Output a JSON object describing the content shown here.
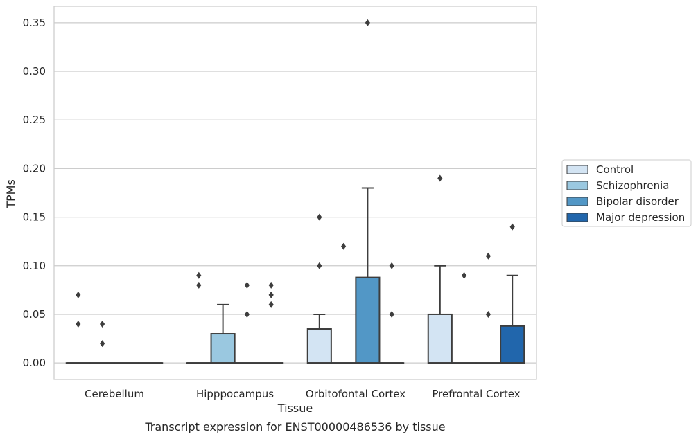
{
  "chart_data": {
    "type": "box",
    "title": "",
    "caption": "Transcript expression for ENST00000486536 by tissue",
    "xlabel": "Tissue",
    "ylabel": "TPMs",
    "ylim": [
      -0.017,
      0.367
    ],
    "yticks": [
      0.0,
      0.05,
      0.1,
      0.15,
      0.2,
      0.25,
      0.3,
      0.35
    ],
    "ytick_labels": [
      "0.00",
      "0.05",
      "0.10",
      "0.15",
      "0.20",
      "0.25",
      "0.30",
      "0.35"
    ],
    "grid": "horizontal",
    "legend_position": "right",
    "categories": [
      "Cerebellum",
      "Hipppocampus",
      "Orbitofontal Cortex",
      "Prefrontal Cortex"
    ],
    "series": [
      {
        "name": "Control",
        "color": "#d3e4f3",
        "boxes": [
          {
            "q1": 0,
            "median": 0,
            "q3": 0,
            "whisker_low": 0,
            "whisker_high": 0,
            "outliers": [
              0.07,
              0.04
            ]
          },
          {
            "q1": 0,
            "median": 0,
            "q3": 0,
            "whisker_low": 0,
            "whisker_high": 0,
            "outliers": [
              0.09,
              0.08
            ]
          },
          {
            "q1": 0,
            "median": 0,
            "q3": 0.035,
            "whisker_low": 0,
            "whisker_high": 0.05,
            "outliers": [
              0.15,
              0.1
            ]
          },
          {
            "q1": 0,
            "median": 0,
            "q3": 0.05,
            "whisker_low": 0,
            "whisker_high": 0.1,
            "outliers": [
              0.19
            ]
          }
        ]
      },
      {
        "name": "Schizophrenia",
        "color": "#9ac8e0",
        "boxes": [
          {
            "q1": 0,
            "median": 0,
            "q3": 0,
            "whisker_low": 0,
            "whisker_high": 0,
            "outliers": [
              0.04,
              0.02
            ]
          },
          {
            "q1": 0,
            "median": 0,
            "q3": 0.03,
            "whisker_low": 0,
            "whisker_high": 0.06,
            "outliers": []
          },
          {
            "q1": 0,
            "median": 0,
            "q3": 0,
            "whisker_low": 0,
            "whisker_high": 0,
            "outliers": [
              0.12
            ]
          },
          {
            "q1": 0,
            "median": 0,
            "q3": 0,
            "whisker_low": 0,
            "whisker_high": 0,
            "outliers": [
              0.09
            ]
          }
        ]
      },
      {
        "name": "Bipolar disorder",
        "color": "#5297c6",
        "boxes": [
          {
            "q1": 0,
            "median": 0,
            "q3": 0,
            "whisker_low": 0,
            "whisker_high": 0,
            "outliers": []
          },
          {
            "q1": 0,
            "median": 0,
            "q3": 0,
            "whisker_low": 0,
            "whisker_high": 0,
            "outliers": [
              0.08,
              0.05
            ]
          },
          {
            "q1": 0,
            "median": 0,
            "q3": 0.088,
            "whisker_low": 0,
            "whisker_high": 0.18,
            "outliers": [
              0.35
            ]
          },
          {
            "q1": 0,
            "median": 0,
            "q3": 0,
            "whisker_low": 0,
            "whisker_high": 0,
            "outliers": [
              0.11,
              0.05
            ]
          }
        ]
      },
      {
        "name": "Major depression",
        "color": "#2166ac",
        "boxes": [
          {
            "q1": 0,
            "median": 0,
            "q3": 0,
            "whisker_low": 0,
            "whisker_high": 0,
            "outliers": []
          },
          {
            "q1": 0,
            "median": 0,
            "q3": 0,
            "whisker_low": 0,
            "whisker_high": 0,
            "outliers": [
              0.08,
              0.07,
              0.06
            ]
          },
          {
            "q1": 0,
            "median": 0,
            "q3": 0,
            "whisker_low": 0,
            "whisker_high": 0,
            "outliers": [
              0.1,
              0.05
            ]
          },
          {
            "q1": 0,
            "median": 0,
            "q3": 0.038,
            "whisker_low": 0,
            "whisker_high": 0.09,
            "outliers": [
              0.14
            ]
          }
        ]
      }
    ]
  }
}
